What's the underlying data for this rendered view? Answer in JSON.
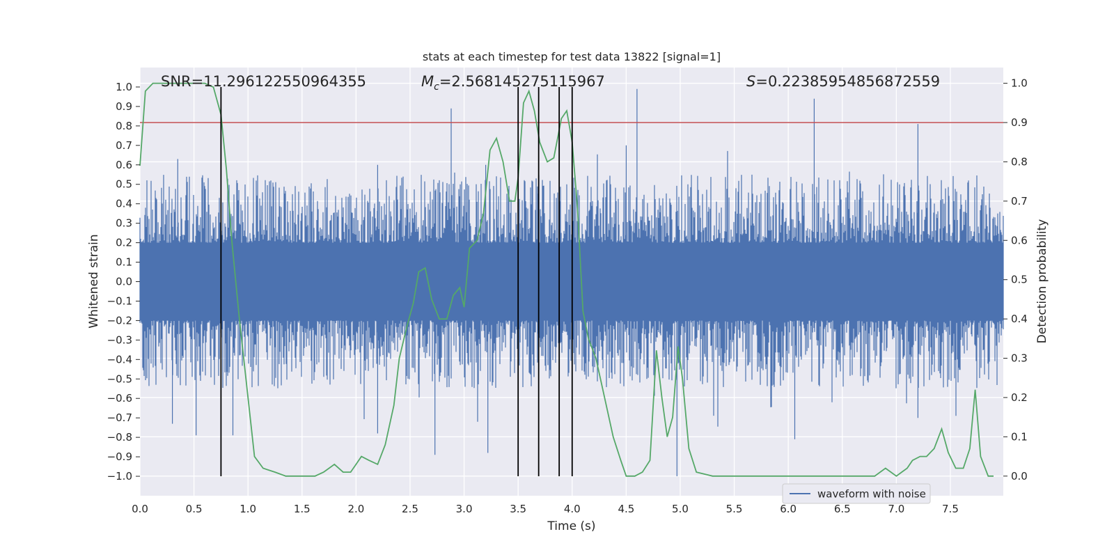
{
  "chart_data": {
    "type": "line",
    "title": "stats at each timestep for test data 13822 [signal=1]",
    "xlabel": "Time (s)",
    "ylabel_left": "Whitened strain",
    "ylabel_right": "Detection probability",
    "xlim": [
      0,
      7.99
    ],
    "ylim_left": [
      -1.1,
      1.1
    ],
    "ylim_right": [
      -0.05,
      1.04
    ],
    "x_ticks": [
      0,
      0.5,
      1,
      1.5,
      2,
      2.5,
      3,
      3.5,
      4,
      4.5,
      5,
      5.5,
      6,
      6.5,
      7,
      7.5
    ],
    "x_tick_labels": [
      "0.0",
      "0.5",
      "1.0",
      "1.5",
      "2.0",
      "2.5",
      "3.0",
      "3.5",
      "4.0",
      "4.5",
      "5.0",
      "5.5",
      "6.0",
      "6.5",
      "7.0",
      "7.5"
    ],
    "y_left_ticks": [
      1,
      0.9,
      0.8,
      0.7,
      0.6,
      0.5,
      0.4,
      0.3,
      0.2,
      0.1,
      0,
      -0.1,
      -0.2,
      -0.3,
      -0.4,
      -0.5,
      -0.6,
      -0.7,
      -0.8,
      -0.9,
      -1
    ],
    "y_left_tick_labels": [
      "1.0",
      "0.9",
      "0.8",
      "0.7",
      "0.6",
      "0.5",
      "0.4",
      "0.3",
      "0.2",
      "0.1",
      "0.0",
      "−0.1",
      "−0.2",
      "−0.3",
      "−0.4",
      "−0.5",
      "−0.6",
      "−0.7",
      "−0.8",
      "−0.9",
      "−1.0"
    ],
    "y_right_ticks": [
      1,
      0.9,
      0.8,
      0.7,
      0.6,
      0.5,
      0.4,
      0.3,
      0.2,
      0.1,
      0
    ],
    "y_right_tick_labels": [
      "1.0",
      "0.9",
      "0.8",
      "0.7",
      "0.6",
      "0.5",
      "0.4",
      "0.3",
      "0.2",
      "0.1",
      "0.0"
    ],
    "annotations": {
      "snr": "SNR=11.296122550964355",
      "mc_symbol": "M",
      "mc_sub": "c",
      "mc_value": "=2.568145275115967",
      "s_symbol": "S",
      "s_value": "=0.22385954856872559"
    },
    "legend": {
      "position": "lower-right",
      "entries": [
        "waveform with noise"
      ]
    },
    "threshold": {
      "axis": "right",
      "value": 0.9,
      "color": "#c44e52"
    },
    "vlines": {
      "x": [
        0.75,
        3.5,
        3.69,
        3.88,
        4.0
      ],
      "ymin": -1,
      "ymax": 1,
      "color": "#000000"
    },
    "waveform": {
      "name": "waveform with noise",
      "color": "#4c72b0",
      "core_amplitude": 0.2,
      "typical_peak": 0.45,
      "peaks": [
        {
          "x": 2.88,
          "y": 0.89
        },
        {
          "x": 6.24,
          "y": 0.94
        },
        {
          "x": 4.6,
          "y": 0.99
        },
        {
          "x": 7.2,
          "y": 0.81
        },
        {
          "x": 2.2,
          "y": 0.6
        },
        {
          "x": 3.2,
          "y": 0.6
        },
        {
          "x": 4.5,
          "y": 0.7
        },
        {
          "x": 0.35,
          "y": 0.63
        },
        {
          "x": 2.2,
          "y": -0.78
        },
        {
          "x": 2.73,
          "y": -0.89
        },
        {
          "x": 3.22,
          "y": -0.88
        },
        {
          "x": 4.97,
          "y": -1.0
        },
        {
          "x": 6.06,
          "y": -0.81
        },
        {
          "x": 0.52,
          "y": -0.79
        },
        {
          "x": 0.86,
          "y": -0.79
        },
        {
          "x": 7.2,
          "y": -0.7
        },
        {
          "x": 0.3,
          "y": -0.73
        }
      ]
    },
    "probability": {
      "name": "detection probability",
      "color": "#55a868",
      "x": [
        0,
        0.05,
        0.12,
        0.2,
        0.3,
        0.4,
        0.5,
        0.6,
        0.68,
        0.75,
        0.8,
        0.85,
        0.92,
        1.0,
        1.06,
        1.14,
        1.25,
        1.35,
        1.45,
        1.55,
        1.62,
        1.7,
        1.75,
        1.8,
        1.88,
        1.95,
        2.0,
        2.05,
        2.12,
        2.2,
        2.27,
        2.35,
        2.4,
        2.47,
        2.53,
        2.58,
        2.64,
        2.7,
        2.77,
        2.84,
        2.9,
        2.96,
        3.0,
        3.05,
        3.12,
        3.18,
        3.24,
        3.3,
        3.36,
        3.42,
        3.47,
        3.5,
        3.55,
        3.6,
        3.65,
        3.7,
        3.77,
        3.83,
        3.9,
        3.95,
        4.0,
        4.05,
        4.1,
        4.15,
        4.22,
        4.3,
        4.38,
        4.45,
        4.5,
        4.58,
        4.65,
        4.72,
        4.78,
        4.83,
        4.88,
        4.93,
        4.98,
        5.02,
        5.08,
        5.15,
        5.3,
        5.5,
        5.7,
        5.85,
        5.95,
        6.0,
        6.1,
        6.2,
        6.3,
        6.4,
        6.5,
        6.55,
        6.6,
        6.7,
        6.8,
        6.85,
        6.9,
        6.95,
        7.0,
        7.05,
        7.1,
        7.15,
        7.22,
        7.28,
        7.35,
        7.42,
        7.48,
        7.55,
        7.62,
        7.68,
        7.73,
        7.78,
        7.85,
        7.9
      ],
      "y": [
        0.79,
        0.98,
        1.0,
        1.0,
        1.0,
        1.0,
        1.0,
        1.0,
        0.99,
        0.92,
        0.78,
        0.6,
        0.4,
        0.2,
        0.05,
        0.02,
        0.01,
        0.0,
        0.0,
        0.0,
        0.0,
        0.01,
        0.02,
        0.03,
        0.01,
        0.01,
        0.03,
        0.05,
        0.04,
        0.03,
        0.08,
        0.18,
        0.3,
        0.38,
        0.44,
        0.52,
        0.53,
        0.45,
        0.4,
        0.4,
        0.46,
        0.48,
        0.43,
        0.58,
        0.6,
        0.67,
        0.83,
        0.86,
        0.8,
        0.7,
        0.7,
        0.76,
        0.95,
        0.98,
        0.93,
        0.85,
        0.8,
        0.81,
        0.91,
        0.93,
        0.85,
        0.68,
        0.42,
        0.35,
        0.3,
        0.2,
        0.1,
        0.04,
        0.0,
        0.0,
        0.01,
        0.04,
        0.32,
        0.2,
        0.1,
        0.15,
        0.33,
        0.25,
        0.07,
        0.01,
        0.0,
        0.0,
        0.0,
        0.0,
        0.0,
        0.0,
        0.0,
        0.0,
        0.0,
        0.0,
        0.0,
        0.0,
        0.0,
        0.0,
        0.0,
        0.01,
        0.02,
        0.01,
        0.0,
        0.01,
        0.02,
        0.04,
        0.05,
        0.05,
        0.07,
        0.12,
        0.06,
        0.02,
        0.02,
        0.07,
        0.22,
        0.05,
        0.0,
        0.0
      ]
    },
    "colors": {
      "plot_background": "#eaeaf2",
      "grid": "#ffffff",
      "legend_border": "#cccccc"
    }
  }
}
